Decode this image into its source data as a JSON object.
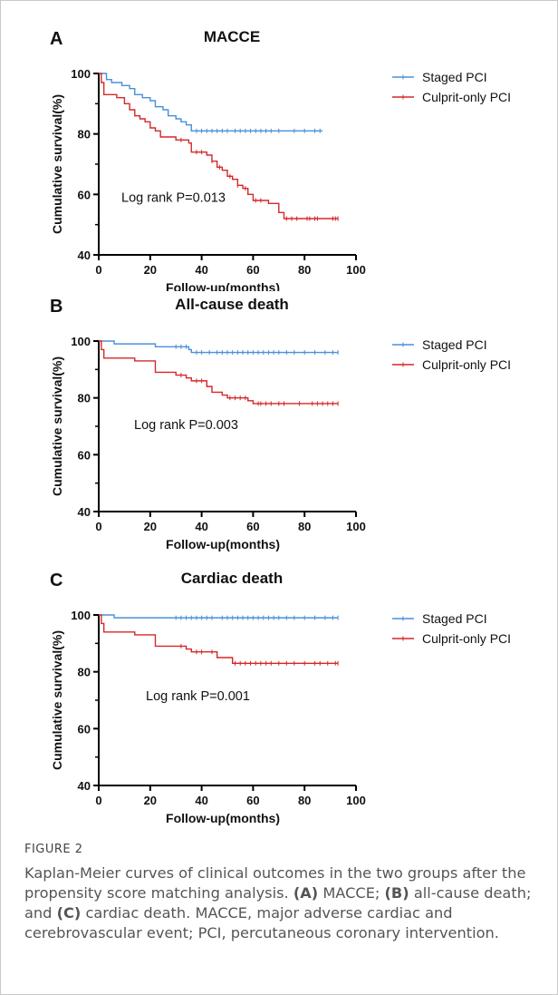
{
  "chart_data": [
    {
      "type": "line",
      "panel": "A",
      "title": "MACCE",
      "xlabel": "Follow-up(months)",
      "ylabel": "Cumulative survival(%)",
      "xlim": [
        0,
        100
      ],
      "ylim": [
        40,
        100
      ],
      "xticks": [
        "0",
        "20",
        "40",
        "60",
        "80",
        "100"
      ],
      "yticks": [
        "40",
        "60",
        "80",
        "100"
      ],
      "annotation": "Log rank P=0.013",
      "legend_position": "top-right",
      "series": [
        {
          "name": "Staged PCI",
          "color": "#4a90d9",
          "steps": [
            [
              0,
              100
            ],
            [
              3,
              98
            ],
            [
              5,
              97
            ],
            [
              9,
              96
            ],
            [
              12,
              95
            ],
            [
              14,
              93
            ],
            [
              17,
              92
            ],
            [
              20,
              91
            ],
            [
              22,
              89
            ],
            [
              25,
              88
            ],
            [
              27,
              86
            ],
            [
              30,
              85
            ],
            [
              32,
              84
            ],
            [
              34,
              83
            ],
            [
              36,
              81
            ],
            [
              87,
              81
            ]
          ],
          "censor": [
            38,
            40,
            42,
            44,
            46,
            48,
            50,
            53,
            55,
            57,
            59,
            61,
            63,
            65,
            67,
            70,
            76,
            80,
            84,
            86
          ]
        },
        {
          "name": "Culprit-only PCI",
          "color": "#d62728",
          "steps": [
            [
              0,
              100
            ],
            [
              1,
              97
            ],
            [
              2,
              93
            ],
            [
              7,
              92
            ],
            [
              10,
              90
            ],
            [
              12,
              88
            ],
            [
              14,
              86
            ],
            [
              16,
              85
            ],
            [
              18,
              84
            ],
            [
              20,
              82
            ],
            [
              22,
              81
            ],
            [
              24,
              79
            ],
            [
              30,
              78
            ],
            [
              35,
              77
            ],
            [
              36,
              74
            ],
            [
              42,
              73
            ],
            [
              44,
              71
            ],
            [
              46,
              69
            ],
            [
              48,
              68
            ],
            [
              50,
              66
            ],
            [
              52,
              65
            ],
            [
              54,
              63
            ],
            [
              56,
              62
            ],
            [
              58,
              60
            ],
            [
              60,
              58
            ],
            [
              66,
              57
            ],
            [
              70,
              54
            ],
            [
              72,
              52
            ],
            [
              93,
              52
            ]
          ],
          "censor": [
            32,
            38,
            40,
            44,
            47,
            51,
            54,
            57,
            61,
            63,
            73,
            75,
            77,
            81,
            82,
            84,
            85,
            91,
            92,
            93
          ]
        }
      ]
    },
    {
      "type": "line",
      "panel": "B",
      "title": "All-cause death",
      "xlabel": "Follow-up(months)",
      "ylabel": "Cumulative survival(%)",
      "xlim": [
        0,
        100
      ],
      "ylim": [
        40,
        100
      ],
      "xticks": [
        "0",
        "20",
        "40",
        "60",
        "80",
        "100"
      ],
      "yticks": [
        "40",
        "60",
        "80",
        "100"
      ],
      "annotation": "Log rank P=0.003",
      "legend_position": "top-right",
      "series": [
        {
          "name": "Staged PCI",
          "color": "#4a90d9",
          "steps": [
            [
              0,
              100
            ],
            [
              6,
              99
            ],
            [
              22,
              98
            ],
            [
              35,
              97
            ],
            [
              36,
              96
            ],
            [
              93,
              96
            ]
          ],
          "censor": [
            30,
            32,
            34,
            38,
            40,
            43,
            46,
            48,
            50,
            52,
            54,
            56,
            58,
            60,
            62,
            64,
            66,
            68,
            70,
            73,
            76,
            80,
            84,
            88,
            91,
            93
          ]
        },
        {
          "name": "Culprit-only PCI",
          "color": "#d62728",
          "steps": [
            [
              0,
              100
            ],
            [
              1,
              97
            ],
            [
              2,
              94
            ],
            [
              14,
              93
            ],
            [
              22,
              89
            ],
            [
              30,
              88
            ],
            [
              34,
              87
            ],
            [
              36,
              86
            ],
            [
              42,
              84
            ],
            [
              44,
              82
            ],
            [
              48,
              81
            ],
            [
              50,
              80
            ],
            [
              58,
              79
            ],
            [
              60,
              78
            ],
            [
              93,
              78
            ]
          ],
          "censor": [
            32,
            38,
            40,
            51,
            53,
            55,
            57,
            62,
            63,
            65,
            67,
            70,
            72,
            78,
            83,
            85,
            87,
            89,
            91,
            93
          ]
        }
      ]
    },
    {
      "type": "line",
      "panel": "C",
      "title": "Cardiac death",
      "xlabel": "Follow-up(months)",
      "ylabel": "Cumulative survival(%)",
      "xlim": [
        0,
        100
      ],
      "ylim": [
        40,
        100
      ],
      "xticks": [
        "0",
        "20",
        "40",
        "60",
        "80",
        "100"
      ],
      "yticks": [
        "40",
        "60",
        "80",
        "100"
      ],
      "annotation": "Log rank P=0.001",
      "legend_position": "top-right",
      "series": [
        {
          "name": "Staged PCI",
          "color": "#4a90d9",
          "steps": [
            [
              0,
              100
            ],
            [
              6,
              99
            ],
            [
              93,
              99
            ]
          ],
          "censor": [
            30,
            32,
            34,
            36,
            38,
            40,
            42,
            44,
            48,
            50,
            52,
            54,
            56,
            58,
            60,
            62,
            64,
            66,
            68,
            70,
            73,
            76,
            80,
            84,
            88,
            91,
            93
          ]
        },
        {
          "name": "Culprit-only PCI",
          "color": "#d62728",
          "steps": [
            [
              0,
              100
            ],
            [
              1,
              97
            ],
            [
              2,
              94
            ],
            [
              14,
              93
            ],
            [
              22,
              89
            ],
            [
              34,
              88
            ],
            [
              36,
              87
            ],
            [
              46,
              85
            ],
            [
              52,
              83
            ],
            [
              93,
              83
            ]
          ],
          "censor": [
            32,
            38,
            40,
            44,
            53,
            55,
            57,
            59,
            61,
            63,
            65,
            67,
            70,
            73,
            76,
            80,
            84,
            86,
            89,
            92,
            93
          ]
        }
      ]
    }
  ],
  "caption": {
    "label": "FIGURE 2",
    "text_1": "Kaplan-Meier curves of clinical outcomes in the two groups after the propensity score matching analysis.",
    "a": "(A)",
    "a_text": "MACCE;",
    "b": "(B)",
    "b_text": "all-cause death; and",
    "c": "(C)",
    "c_text": "cardiac death. MACCE, major adverse cardiac and cerebrovascular event; PCI, percutaneous coronary intervention."
  }
}
